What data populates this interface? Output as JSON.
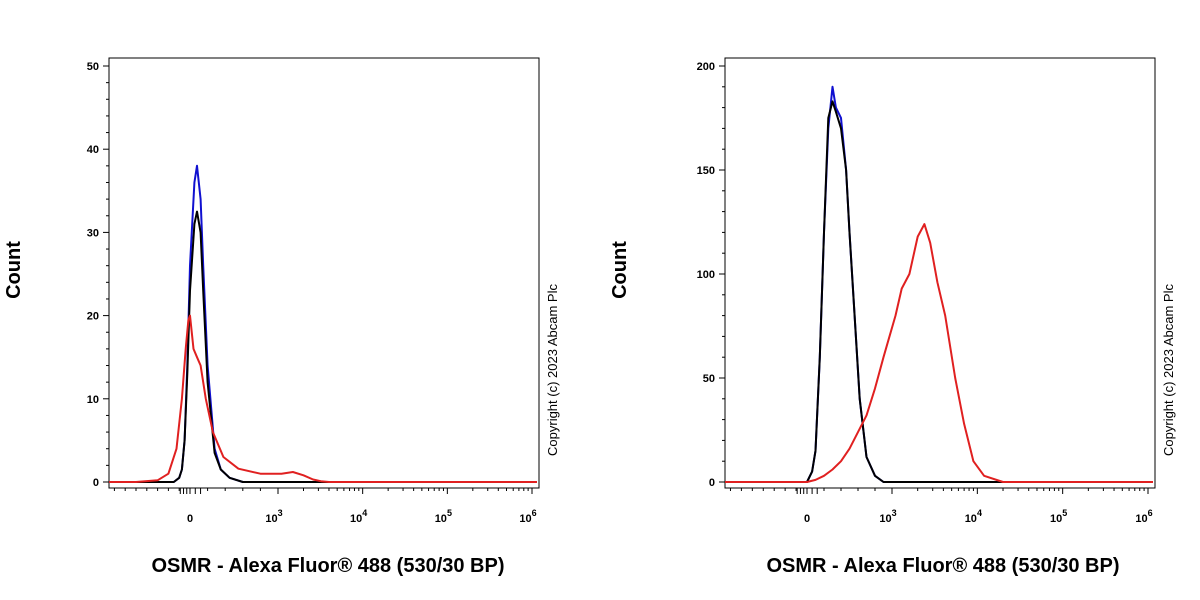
{
  "chart_data": [
    {
      "type": "line",
      "xlabel": "OSMR - Alexa Fluor® 488 (530/30 BP)",
      "ylabel": "Count",
      "ylim": [
        0,
        50
      ],
      "y_ticks": [
        0,
        10,
        20,
        30,
        40,
        50
      ],
      "x_scale": "biexponential",
      "x_ticks": [
        {
          "value": 0,
          "base": "0",
          "exp": ""
        },
        {
          "value": 1000,
          "base": "10",
          "exp": "3"
        },
        {
          "value": 10000,
          "base": "10",
          "exp": "4"
        },
        {
          "value": 100000,
          "base": "10",
          "exp": "5"
        },
        {
          "value": 1000000,
          "base": "10",
          "exp": "6"
        }
      ],
      "copyright": "Copyright (c) 2023 Abcam Plc",
      "grid": false,
      "series": [
        {
          "color": "#1010d0",
          "x": [
            -300,
            -200,
            -150,
            -100,
            -50,
            0,
            50,
            80,
            120,
            150,
            200,
            280,
            350,
            450,
            600,
            800
          ],
          "y": [
            0,
            0.5,
            1.5,
            5,
            14,
            26,
            36,
            38,
            34,
            26,
            14,
            4,
            1.5,
            0.5,
            0,
            0
          ]
        },
        {
          "color": "#000000",
          "x": [
            -300,
            -200,
            -150,
            -100,
            -50,
            0,
            50,
            80,
            120,
            150,
            200,
            280,
            350,
            450,
            600,
            800
          ],
          "y": [
            0,
            0.5,
            1.5,
            5,
            13,
            23,
            31,
            32.5,
            30,
            23,
            12,
            3.5,
            1.5,
            0.5,
            0,
            0
          ]
        },
        {
          "color": "#e02020",
          "x": [
            -1000,
            -600,
            -400,
            -250,
            -150,
            -80,
            -30,
            0,
            40,
            80,
            120,
            180,
            260,
            380,
            550,
            800,
            1100,
            1500,
            2000,
            2600,
            3200,
            4000,
            6000,
            100000,
            1000000
          ],
          "y": [
            0,
            0.2,
            1,
            4,
            10,
            16,
            19.5,
            20,
            16,
            15,
            14,
            10,
            6,
            3,
            1.6,
            1,
            1,
            1.2,
            0.8,
            0.3,
            0.1,
            0,
            0,
            0,
            0
          ]
        }
      ]
    },
    {
      "type": "line",
      "xlabel": "OSMR - Alexa Fluor® 488 (530/30 BP)",
      "ylabel": "Count",
      "ylim": [
        0,
        200
      ],
      "y_ticks": [
        0,
        50,
        100,
        150,
        200
      ],
      "x_scale": "biexponential",
      "x_ticks": [
        {
          "value": 0,
          "base": "0",
          "exp": ""
        },
        {
          "value": 1000,
          "base": "10",
          "exp": "3"
        },
        {
          "value": 10000,
          "base": "10",
          "exp": "4"
        },
        {
          "value": 100000,
          "base": "10",
          "exp": "5"
        },
        {
          "value": 1000000,
          "base": "10",
          "exp": "6"
        }
      ],
      "copyright": "Copyright (c) 2023 Abcam Plc",
      "grid": false,
      "series": [
        {
          "color": "#1010d0",
          "x": [
            0,
            60,
            100,
            150,
            200,
            250,
            300,
            340,
            400,
            460,
            500,
            560,
            620,
            700,
            800,
            900
          ],
          "y": [
            0,
            5,
            15,
            60,
            120,
            170,
            190,
            180,
            175,
            150,
            120,
            80,
            40,
            12,
            3,
            0
          ]
        },
        {
          "color": "#000000",
          "x": [
            0,
            60,
            100,
            150,
            200,
            250,
            300,
            340,
            400,
            460,
            500,
            560,
            620,
            700,
            800,
            900
          ],
          "y": [
            0,
            5,
            15,
            60,
            120,
            175,
            183,
            178,
            170,
            150,
            120,
            80,
            40,
            12,
            3,
            0
          ]
        },
        {
          "color": "#e02020",
          "x": [
            0,
            100,
            200,
            300,
            400,
            500,
            600,
            700,
            800,
            900,
            1100,
            1300,
            1600,
            2000,
            2400,
            2800,
            3400,
            4200,
            5500,
            7000,
            9000,
            12000,
            20000,
            100000,
            1000000
          ],
          "y": [
            0,
            1,
            3,
            6,
            10,
            16,
            24,
            32,
            45,
            60,
            80,
            93,
            100,
            118,
            124,
            115,
            96,
            80,
            50,
            28,
            10,
            3,
            0,
            0,
            0
          ]
        }
      ]
    }
  ]
}
